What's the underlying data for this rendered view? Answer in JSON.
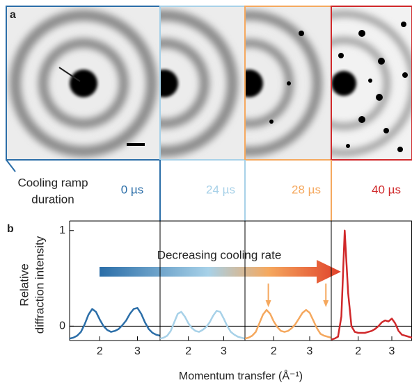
{
  "panel_labels": [
    "a",
    "b"
  ],
  "ramp_label": [
    "Cooling ramp",
    "duration"
  ],
  "durations": [
    "0 µs",
    "24 µs",
    "28 µs",
    "40 µs"
  ],
  "ylabel": [
    "Relative",
    "diffraction intensity"
  ],
  "xlabel": "Momentum transfer (Å⁻¹)",
  "annotation": "Decreasing cooling rate",
  "chart_data": [
    {
      "type": "line",
      "color": "#2b6ea8",
      "xlim": [
        1.2,
        3.6
      ],
      "ylim": [
        -0.15,
        1.1
      ],
      "xticks": [
        2,
        3
      ],
      "yticks": [
        0,
        1
      ],
      "x": [
        1.2,
        1.3,
        1.4,
        1.5,
        1.6,
        1.7,
        1.8,
        1.9,
        2.0,
        2.1,
        2.2,
        2.3,
        2.4,
        2.5,
        2.6,
        2.7,
        2.8,
        2.9,
        3.0,
        3.1,
        3.2,
        3.3,
        3.4,
        3.5,
        3.6
      ],
      "values": [
        -0.13,
        -0.12,
        -0.1,
        -0.06,
        0.02,
        0.12,
        0.18,
        0.15,
        0.07,
        0.0,
        -0.04,
        -0.06,
        -0.05,
        -0.03,
        0.01,
        0.06,
        0.13,
        0.18,
        0.19,
        0.13,
        0.04,
        -0.03,
        -0.07,
        -0.09,
        -0.1
      ]
    },
    {
      "type": "line",
      "color": "#a7d1e8",
      "xlim": [
        1.2,
        3.6
      ],
      "ylim": [
        -0.15,
        1.1
      ],
      "xticks": [
        2,
        3
      ],
      "x": [
        1.2,
        1.3,
        1.4,
        1.5,
        1.6,
        1.7,
        1.8,
        1.9,
        2.0,
        2.1,
        2.2,
        2.3,
        2.4,
        2.5,
        2.6,
        2.7,
        2.8,
        2.9,
        3.0,
        3.1,
        3.2,
        3.3,
        3.4,
        3.5,
        3.6
      ],
      "values": [
        -0.13,
        -0.12,
        -0.1,
        -0.05,
        0.04,
        0.13,
        0.15,
        0.1,
        0.03,
        -0.02,
        -0.05,
        -0.06,
        -0.04,
        -0.01,
        0.04,
        0.11,
        0.16,
        0.15,
        0.08,
        0.0,
        -0.06,
        -0.09,
        -0.11,
        -0.12,
        -0.13
      ]
    },
    {
      "type": "line",
      "color": "#f5a85e",
      "xlim": [
        1.2,
        3.6
      ],
      "ylim": [
        -0.15,
        1.1
      ],
      "xticks": [
        2,
        3
      ],
      "x": [
        1.2,
        1.3,
        1.4,
        1.5,
        1.6,
        1.7,
        1.8,
        1.9,
        2.0,
        2.1,
        2.2,
        2.3,
        2.4,
        2.5,
        2.6,
        2.7,
        2.8,
        2.9,
        3.0,
        3.1,
        3.2,
        3.3,
        3.4,
        3.5,
        3.6
      ],
      "values": [
        -0.13,
        -0.12,
        -0.1,
        -0.06,
        0.03,
        0.12,
        0.17,
        0.13,
        0.05,
        -0.01,
        -0.05,
        -0.06,
        -0.05,
        -0.02,
        0.02,
        0.08,
        0.14,
        0.17,
        0.14,
        0.06,
        -0.02,
        -0.08,
        -0.1,
        -0.11,
        -0.12
      ],
      "arrows": [
        1.85,
        3.45
      ]
    },
    {
      "type": "line",
      "color": "#d0282a",
      "xlim": [
        1.2,
        3.6
      ],
      "ylim": [
        -0.15,
        1.1
      ],
      "xticks": [
        2,
        3
      ],
      "x": [
        1.2,
        1.3,
        1.4,
        1.5,
        1.6,
        1.7,
        1.8,
        1.9,
        2.0,
        2.1,
        2.2,
        2.3,
        2.4,
        2.5,
        2.6,
        2.7,
        2.8,
        2.9,
        3.0,
        3.1,
        3.2,
        3.3,
        3.4,
        3.5,
        3.6
      ],
      "values": [
        -0.14,
        -0.13,
        -0.11,
        0.1,
        1.0,
        0.35,
        0.0,
        -0.06,
        -0.07,
        -0.07,
        -0.07,
        -0.06,
        -0.05,
        -0.03,
        0.0,
        0.04,
        0.06,
        0.05,
        0.08,
        0.03,
        -0.05,
        -0.09,
        -0.1,
        -0.11,
        -0.12
      ]
    }
  ]
}
